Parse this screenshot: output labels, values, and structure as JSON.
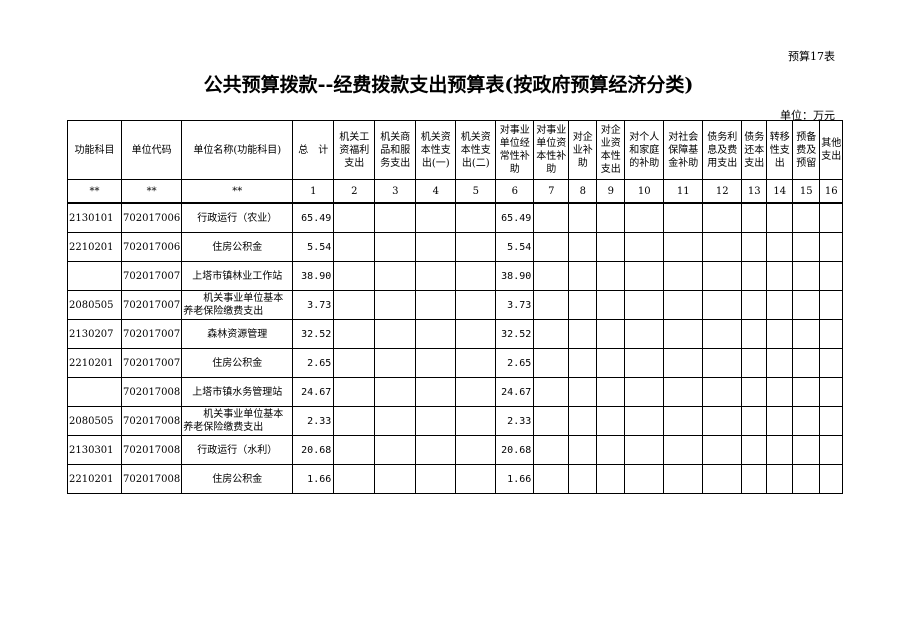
{
  "table_tag": "预算17表",
  "title": "公共预算拨款--经费拨款支出预算表(按政府预算经济分类)",
  "unit": "单位：万元",
  "headers": [
    "功能科目",
    "单位代码",
    "单位名称(功能科目)",
    "总　计",
    "机关工资福利支出",
    "机关商品和服务支出",
    "机关资本性支出(一)",
    "机关资本性支出(二)",
    "对事业单位经常性补助",
    "对事业单位资本性补助",
    "对企业补助",
    "对企业资本性支出",
    "对个人和家庭的补助",
    "对社会保障基金补助",
    "债务利息及费用支出",
    "债务还本支出",
    "转移性支出",
    "预备费及预留",
    "其他支出"
  ],
  "header_numbers": [
    "**",
    "**",
    "**",
    "1",
    "2",
    "3",
    "4",
    "5",
    "6",
    "7",
    "8",
    "9",
    "10",
    "11",
    "12",
    "13",
    "14",
    "15",
    "16"
  ],
  "rows": [
    {
      "func": "2130101",
      "code": "702017006",
      "name": "行政运行（农业）",
      "total": "65.49",
      "c6": "65.49"
    },
    {
      "func": "2210201",
      "code": "702017006",
      "name": "住房公积金",
      "total": "5.54",
      "c6": "5.54"
    },
    {
      "func": "",
      "code": "702017007",
      "name": "上塔市镇林业工作站",
      "total": "38.90",
      "c6": "38.90"
    },
    {
      "func": "2080505",
      "code": "702017007",
      "name": "机关事业单位基本养老保险缴费支出",
      "total": "3.73",
      "c6": "3.73"
    },
    {
      "func": "2130207",
      "code": "702017007",
      "name": "森林资源管理",
      "total": "32.52",
      "c6": "32.52"
    },
    {
      "func": "2210201",
      "code": "702017007",
      "name": "住房公积金",
      "total": "2.65",
      "c6": "2.65"
    },
    {
      "func": "",
      "code": "702017008",
      "name": "上塔市镇水务管理站",
      "total": "24.67",
      "c6": "24.67"
    },
    {
      "func": "2080505",
      "code": "702017008",
      "name": "机关事业单位基本养老保险缴费支出",
      "total": "2.33",
      "c6": "2.33"
    },
    {
      "func": "2130301",
      "code": "702017008",
      "name": "行政运行（水利）",
      "total": "20.68",
      "c6": "20.68"
    },
    {
      "func": "2210201",
      "code": "702017008",
      "name": "住房公积金",
      "total": "1.66",
      "c6": "1.66"
    }
  ]
}
